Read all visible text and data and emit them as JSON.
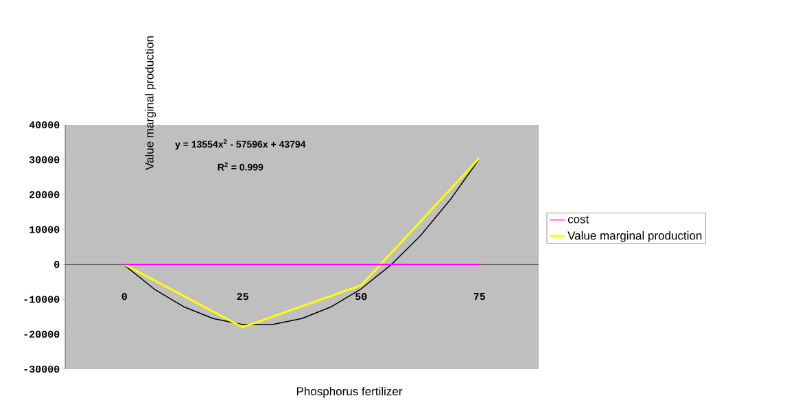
{
  "chart_data": {
    "type": "line",
    "xlabel": "Phosphorus fertilizer",
    "ylabel": "Value marginal production",
    "x": [
      0,
      25,
      50,
      75
    ],
    "series": [
      {
        "name": "cost",
        "color": "#ff00ff",
        "values": [
          0,
          0,
          0,
          0
        ]
      },
      {
        "name": "Value marginal production",
        "color": "#ffff00",
        "values": [
          0,
          -18000,
          -6000,
          30500
        ]
      },
      {
        "type": "line",
        "color": "#000000",
        "x": [
          0,
          6.25,
          12.5,
          18.75,
          25,
          31.25,
          37.5,
          43.75,
          50,
          56.25,
          62.5,
          68.75,
          75
        ],
        "values": [
          -200,
          -7000,
          -12100,
          -15500,
          -17200,
          -17200,
          -15500,
          -12100,
          -7000,
          -200,
          8200,
          18400,
          30300
        ]
      }
    ],
    "annotations": [
      "y = 13554x$^{2}$ - 57596x + 43794",
      "R$^{2}$ = 0.999"
    ],
    "xlim": [
      -12.5,
      87.5
    ],
    "xticks": [
      0,
      25,
      50,
      75
    ],
    "ylim": [
      -30000,
      40000
    ],
    "yticks": [
      -30000,
      -20000,
      -10000,
      0,
      10000,
      20000,
      30000,
      40000
    ],
    "grid": false,
    "legend": "right",
    "marker": "none"
  }
}
